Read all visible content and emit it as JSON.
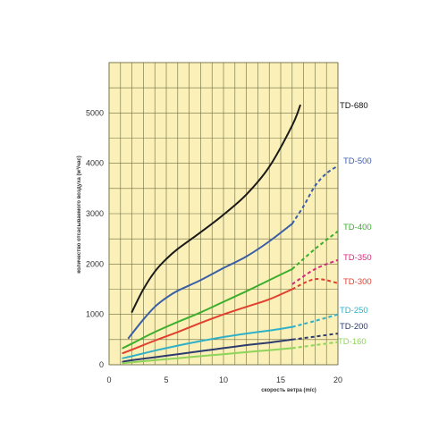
{
  "chart_data": {
    "type": "line",
    "xlabel": "скорость ветра (m/c)",
    "ylabel": "количество отсасываемого воздуха (м³/час)",
    "xlim": [
      0,
      20
    ],
    "ylim": [
      0,
      6000
    ],
    "x_ticks": [
      "0",
      "5",
      "10",
      "15",
      "20"
    ],
    "y_ticks": [
      "0",
      "1000",
      "2000",
      "3000",
      "4000",
      "5000"
    ],
    "grid": true,
    "background": "#fbf0b8",
    "grid_color": "#6b6b40",
    "legend": "right",
    "series": [
      {
        "name": "TD-680",
        "color": "#1a1a1a",
        "solid": [
          [
            2,
            1050
          ],
          [
            3,
            1500
          ],
          [
            4,
            1850
          ],
          [
            5,
            2100
          ],
          [
            6,
            2300
          ],
          [
            8,
            2630
          ],
          [
            10,
            2980
          ],
          [
            12,
            3380
          ],
          [
            14,
            3930
          ],
          [
            16,
            4750
          ],
          [
            16.7,
            5150
          ]
        ],
        "dashed": []
      },
      {
        "name": "TD-500",
        "color": "#3b5fa6",
        "solid": [
          [
            1.7,
            530
          ],
          [
            3,
            900
          ],
          [
            4,
            1150
          ],
          [
            5,
            1330
          ],
          [
            6,
            1470
          ],
          [
            8,
            1680
          ],
          [
            10,
            1920
          ],
          [
            12,
            2150
          ],
          [
            14,
            2450
          ],
          [
            16,
            2800
          ]
        ],
        "dashed": [
          [
            16,
            2800
          ],
          [
            17,
            3150
          ],
          [
            18,
            3550
          ],
          [
            19,
            3800
          ],
          [
            20,
            3950
          ]
        ]
      },
      {
        "name": "TD-400",
        "color": "#3cae2e",
        "solid": [
          [
            1.2,
            330
          ],
          [
            2,
            420
          ],
          [
            4,
            650
          ],
          [
            6,
            850
          ],
          [
            8,
            1040
          ],
          [
            10,
            1250
          ],
          [
            12,
            1460
          ],
          [
            14,
            1680
          ],
          [
            16,
            1900
          ]
        ],
        "dashed": [
          [
            16,
            1900
          ],
          [
            18,
            2300
          ],
          [
            20,
            2650
          ]
        ]
      },
      {
        "name": "TD-350",
        "color": "#d42a7e",
        "solid": [],
        "dashed": [
          [
            16,
            1600
          ],
          [
            18,
            1900
          ],
          [
            20,
            2080
          ]
        ]
      },
      {
        "name": "TD-300",
        "color": "#e2402e",
        "solid": [
          [
            1.2,
            230
          ],
          [
            2,
            300
          ],
          [
            4,
            480
          ],
          [
            6,
            650
          ],
          [
            8,
            830
          ],
          [
            10,
            1000
          ],
          [
            12,
            1150
          ],
          [
            14,
            1300
          ],
          [
            16,
            1500
          ]
        ],
        "dashed": [
          [
            16,
            1500
          ],
          [
            18,
            1700
          ],
          [
            20,
            1620
          ]
        ]
      },
      {
        "name": "TD-250",
        "color": "#2fb0c7",
        "solid": [
          [
            1.2,
            130
          ],
          [
            2,
            170
          ],
          [
            4,
            280
          ],
          [
            6,
            380
          ],
          [
            8,
            470
          ],
          [
            10,
            550
          ],
          [
            12,
            620
          ],
          [
            14,
            680
          ],
          [
            16,
            750
          ]
        ],
        "dashed": [
          [
            16,
            750
          ],
          [
            18,
            870
          ],
          [
            20,
            1000
          ]
        ]
      },
      {
        "name": "TD-200",
        "color": "#2c3c6c",
        "solid": [
          [
            1.2,
            60
          ],
          [
            2,
            90
          ],
          [
            4,
            150
          ],
          [
            6,
            210
          ],
          [
            8,
            270
          ],
          [
            10,
            330
          ],
          [
            12,
            390
          ],
          [
            14,
            440
          ],
          [
            16,
            500
          ]
        ],
        "dashed": [
          [
            16,
            500
          ],
          [
            18,
            560
          ],
          [
            20,
            620
          ]
        ]
      },
      {
        "name": "TD-160",
        "color": "#8fd45a",
        "solid": [
          [
            1.2,
            30
          ],
          [
            2,
            50
          ],
          [
            4,
            90
          ],
          [
            6,
            130
          ],
          [
            8,
            170
          ],
          [
            10,
            210
          ],
          [
            12,
            250
          ],
          [
            14,
            290
          ],
          [
            16,
            330
          ]
        ],
        "dashed": [
          [
            16,
            330
          ],
          [
            18,
            390
          ],
          [
            20,
            450
          ]
        ]
      }
    ]
  }
}
